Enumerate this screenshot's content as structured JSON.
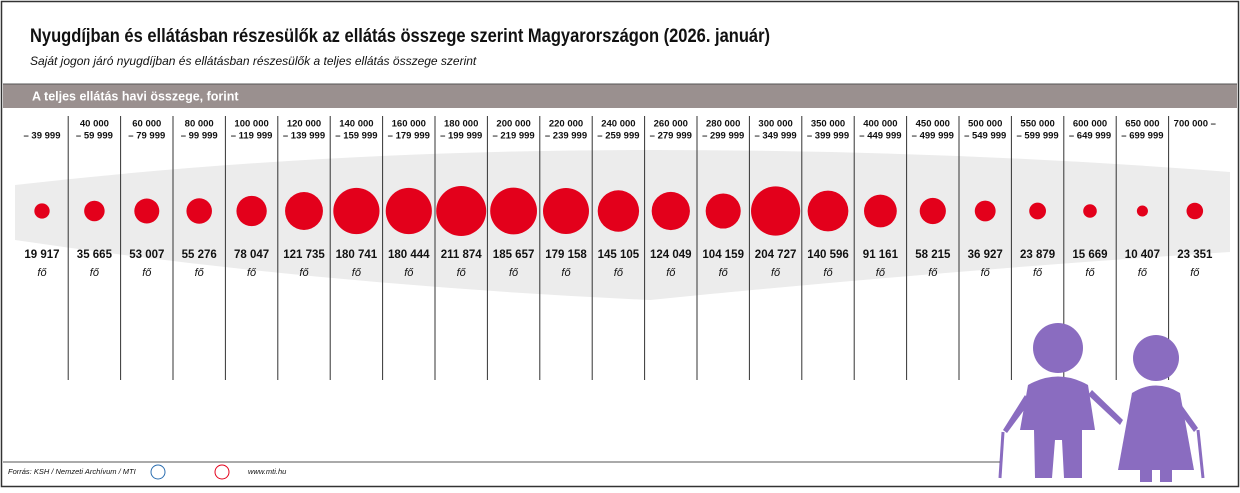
{
  "chart_data": {
    "type": "bubble",
    "title": "Nyugdíjban és ellátásban részesülők az ellátás összege szerint Magyarországon (2026. január)",
    "subtitle": "Saját jogon járó nyugdíjban és ellátásban részesülők a teljes ellátás összege szerint",
    "x_label": "A teljes ellátás havi összege, forint",
    "unit": "fő",
    "source": "Forrás: KSH / Nemzeti Archívum / MTI",
    "website": "www.mti.hu",
    "color": "#e3001b",
    "categories": [
      {
        "to": "– 39 999"
      },
      {
        "from": "40 000",
        "to": "– 59 999"
      },
      {
        "from": "60 000",
        "to": "– 79 999"
      },
      {
        "from": "80 000",
        "to": "– 99 999"
      },
      {
        "from": "100 000",
        "to": "– 119 999"
      },
      {
        "from": "120 000",
        "to": "– 139 999"
      },
      {
        "from": "140 000",
        "to": "– 159 999"
      },
      {
        "from": "160 000",
        "to": "– 179 999"
      },
      {
        "from": "180 000",
        "to": "– 199 999"
      },
      {
        "from": "200 000",
        "to": "– 219 999"
      },
      {
        "from": "220 000",
        "to": "– 239 999"
      },
      {
        "from": "240 000",
        "to": "– 259 999"
      },
      {
        "from": "260 000",
        "to": "– 279 999"
      },
      {
        "from": "280 000",
        "to": "– 299 999"
      },
      {
        "from": "300 000",
        "to": "– 349 999"
      },
      {
        "from": "350 000",
        "to": "– 399 999"
      },
      {
        "from": "400 000",
        "to": "– 449 999"
      },
      {
        "from": "450 000",
        "to": "– 499 999"
      },
      {
        "from": "500 000",
        "to": "– 549 999"
      },
      {
        "from": "550 000",
        "to": "– 599 999"
      },
      {
        "from": "600 000",
        "to": "– 649 999"
      },
      {
        "from": "650 000",
        "to": "– 699 999"
      },
      {
        "from": "700 000 –"
      }
    ],
    "values": [
      19917,
      35665,
      53007,
      55276,
      78047,
      121735,
      180741,
      180444,
      211874,
      185657,
      179158,
      145105,
      124049,
      104159,
      204727,
      140596,
      91161,
      58215,
      36927,
      23879,
      15669,
      10407,
      23351
    ],
    "value_labels": [
      "19 917",
      "35 665",
      "53 007",
      "55 276",
      "78 047",
      "121 735",
      "180 741",
      "180 444",
      "211 874",
      "185 657",
      "179 158",
      "145 105",
      "124 049",
      "104 159",
      "204 727",
      "140 596",
      "91 161",
      "58 215",
      "36 927",
      "23 879",
      "15 669",
      "10 407",
      "23 351"
    ]
  }
}
